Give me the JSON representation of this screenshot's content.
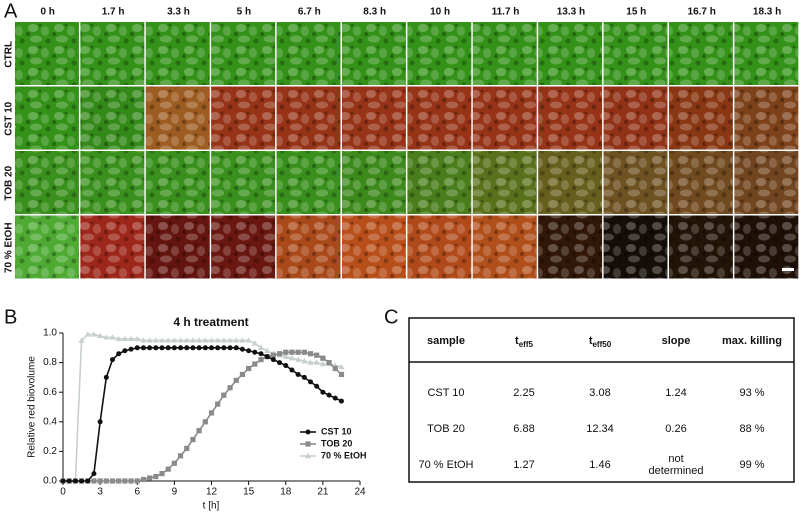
{
  "panel_labels": [
    "A",
    "B",
    "C"
  ],
  "panel_a": {
    "times": [
      "0 h",
      "1.7 h",
      "3.3 h",
      "5 h",
      "6.7 h",
      "8.3 h",
      "10 h",
      "11.7 h",
      "13.3 h",
      "15 h",
      "16.7 h",
      "18.3 h"
    ],
    "rows": [
      {
        "label": "CTRL",
        "tile_colors": [
          "#3fb21f",
          "#3fb21f",
          "#3fb21f",
          "#3fb21f",
          "#3fb21f",
          "#3fb21f",
          "#3fb21f",
          "#3fb21f",
          "#3fb21f",
          "#3fb21f",
          "#3fb21f",
          "#3fb21f"
        ]
      },
      {
        "label": "CST 10",
        "tile_colors": [
          "#3fb21f",
          "#3fa81f",
          "#c07028",
          "#b8401c",
          "#b8401c",
          "#b8401c",
          "#b8401c",
          "#b8401c",
          "#b8401c",
          "#b23e1c",
          "#a84418",
          "#9a5020"
        ]
      },
      {
        "label": "TOB 20",
        "tile_colors": [
          "#46b022",
          "#46b022",
          "#46b022",
          "#46b022",
          "#46b022",
          "#4aa822",
          "#5a9a22",
          "#6e8a22",
          "#7e7424",
          "#86642a",
          "#8a5a26",
          "#8a5426"
        ]
      },
      {
        "label": "70 % EtOH",
        "tile_colors": [
          "#60d040",
          "#c03020",
          "#7a1a12",
          "#801c14",
          "#d05a20",
          "#e06020",
          "#d85a20",
          "#d86020",
          "#3a1c08",
          "#1a1008",
          "#2a1808",
          "#261408"
        ]
      }
    ]
  },
  "chart_data": {
    "type": "line",
    "title": "4 h treatment",
    "x_label": "t [h]",
    "y_label": "Relative red biovolume",
    "x": [
      0,
      0.5,
      1,
      1.5,
      2,
      2.5,
      3,
      3.5,
      4,
      4.5,
      5,
      5.5,
      6,
      6.5,
      7,
      7.5,
      8,
      8.5,
      9,
      9.5,
      10,
      10.5,
      11,
      11.5,
      12,
      12.5,
      13,
      13.5,
      14,
      14.5,
      15,
      15.5,
      16,
      16.5,
      17,
      17.5,
      18,
      18.5,
      19,
      19.5,
      20,
      20.5,
      21,
      21.5,
      22,
      22.5
    ],
    "series": [
      {
        "name": "CST 10",
        "color": "#111111",
        "marker": "circle",
        "values": [
          0,
          0,
          0,
          0,
          0,
          0.05,
          0.4,
          0.7,
          0.82,
          0.86,
          0.88,
          0.89,
          0.9,
          0.9,
          0.9,
          0.9,
          0.9,
          0.9,
          0.9,
          0.9,
          0.9,
          0.9,
          0.9,
          0.9,
          0.9,
          0.9,
          0.9,
          0.9,
          0.9,
          0.89,
          0.88,
          0.87,
          0.86,
          0.84,
          0.82,
          0.8,
          0.78,
          0.75,
          0.72,
          0.7,
          0.67,
          0.64,
          0.6,
          0.58,
          0.56,
          0.54
        ]
      },
      {
        "name": "TOB 20",
        "color": "#8a8a8a",
        "marker": "square",
        "values": [
          0,
          0,
          0,
          0,
          0,
          0,
          0,
          0,
          0,
          0,
          0,
          0,
          0,
          0.01,
          0.02,
          0.03,
          0.05,
          0.08,
          0.12,
          0.17,
          0.22,
          0.28,
          0.34,
          0.4,
          0.46,
          0.52,
          0.58,
          0.63,
          0.68,
          0.72,
          0.76,
          0.79,
          0.82,
          0.84,
          0.85,
          0.86,
          0.87,
          0.87,
          0.87,
          0.87,
          0.86,
          0.85,
          0.83,
          0.8,
          0.76,
          0.72
        ]
      },
      {
        "name": "70 % EtOH",
        "color": "#c8cfcf",
        "marker": "triangle",
        "values": [
          0,
          0,
          0,
          0.95,
          0.99,
          0.99,
          0.98,
          0.97,
          0.97,
          0.96,
          0.96,
          0.96,
          0.96,
          0.95,
          0.95,
          0.95,
          0.95,
          0.95,
          0.95,
          0.95,
          0.95,
          0.95,
          0.95,
          0.95,
          0.95,
          0.95,
          0.95,
          0.95,
          0.95,
          0.95,
          0.95,
          0.93,
          0.9,
          0.88,
          0.86,
          0.85,
          0.84,
          0.83,
          0.82,
          0.81,
          0.8,
          0.8,
          0.79,
          0.79,
          0.78,
          0.77
        ]
      }
    ],
    "xlim": [
      0,
      24
    ],
    "xticks": [
      0,
      3,
      6,
      9,
      12,
      15,
      18,
      21,
      24
    ],
    "ylim": [
      0,
      1.0
    ],
    "yticks": [
      {
        "value": 0,
        "label": "0.0"
      },
      {
        "value": 0.2,
        "label": "0.2"
      },
      {
        "value": 0.4,
        "label": "0.4"
      },
      {
        "value": 0.6,
        "label": "0.6"
      },
      {
        "value": 0.8,
        "label": "0.8"
      },
      {
        "value": 1.0,
        "label": "1.0"
      }
    ],
    "grid": false,
    "legend": "lower right"
  },
  "table": {
    "header": [
      {
        "main": "sample"
      },
      {
        "main": "t",
        "sub": "eff5"
      },
      {
        "main": "t",
        "sub": "eff50"
      },
      {
        "main": "slope"
      },
      {
        "main": "max. killing"
      }
    ],
    "rows": [
      [
        "CST 10",
        "2.25",
        "3.08",
        "1.24",
        "93 %"
      ],
      [
        "TOB 20",
        "6.88",
        "12.34",
        "0.26",
        "88 %"
      ],
      [
        "70 % EtOH",
        "1.27",
        "1.46",
        "not determined",
        "99 %"
      ]
    ]
  }
}
